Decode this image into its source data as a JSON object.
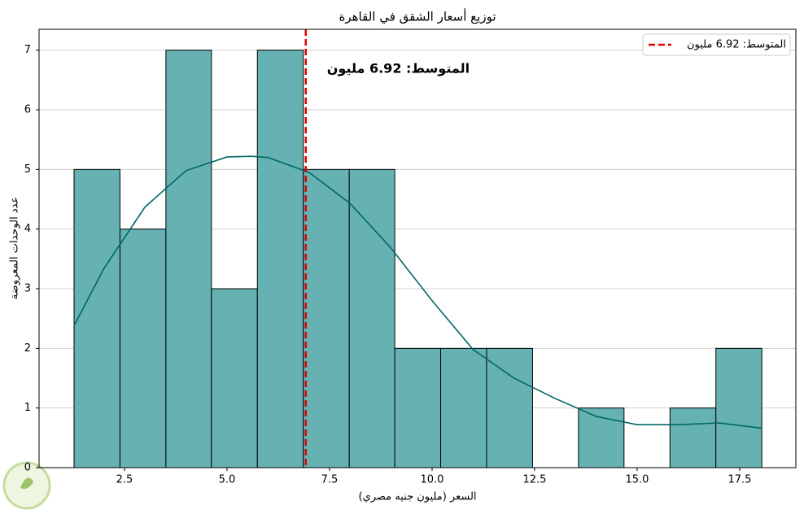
{
  "chart_data": {
    "type": "histogram",
    "title": "توزيع أسعار الشقق في القاهرة",
    "x_label": "السعر (مليون جنيه مصري)",
    "y_label": "عدد الوحدات المعروضة",
    "bins": [
      1.27,
      2.39,
      3.51,
      4.62,
      5.74,
      6.86,
      7.98,
      9.09,
      10.21,
      11.33,
      12.45,
      13.57,
      14.68,
      15.8,
      16.92,
      18.04
    ],
    "counts": [
      5,
      4,
      7,
      3,
      7,
      5,
      5,
      2,
      2,
      2,
      0,
      1,
      0,
      1,
      2
    ],
    "color": "#66b2b2",
    "edgecolor": "#000000",
    "kde": {
      "x": [
        1.27,
        2,
        3,
        4,
        5,
        5.6,
        6,
        7,
        8,
        9,
        10,
        11,
        12,
        13,
        14,
        15,
        16,
        17,
        18.04
      ],
      "values": [
        2.38,
        3.34,
        4.37,
        4.98,
        5.21,
        5.22,
        5.2,
        4.95,
        4.43,
        3.68,
        2.8,
        1.98,
        1.5,
        1.16,
        0.86,
        0.72,
        0.72,
        0.75,
        0.66
      ],
      "color": "#006666"
    },
    "mean": 6.92,
    "mean_color": "#e00000",
    "mean_label": "المتوسط: 6.92 مليون",
    "annotation": "المتوسط: 6.92 مليون",
    "xlim": [
      0.417,
      18.87
    ],
    "ylim": [
      0,
      7.35
    ],
    "xticks": [
      2.5,
      {
        "value": 5,
        "label": "5.0"
      },
      7.5,
      {
        "value": 10,
        "label": "10.0"
      },
      12.5,
      {
        "value": 15,
        "label": "15.0"
      },
      17.5
    ],
    "yticks": [
      0,
      1,
      2,
      3,
      4,
      5,
      6,
      7
    ],
    "grid": true,
    "legend": "upper right"
  }
}
